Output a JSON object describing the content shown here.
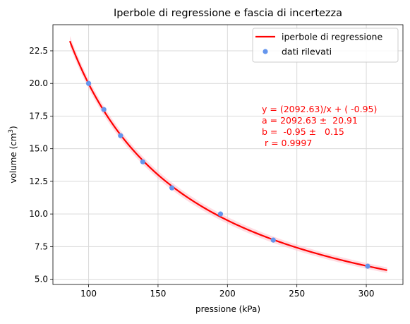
{
  "chart_data": {
    "type": "scatter",
    "title": "Iperbole di regressione e fascia di incertezza",
    "xlabel": "pressione (kPa)",
    "ylabel_main": "volume (cm",
    "ylabel_sup": "3",
    "ylabel_close": ")",
    "xlim": [
      74.3,
      326.4
    ],
    "ylim": [
      4.6,
      24.5
    ],
    "xticks": [
      100,
      150,
      200,
      250,
      300
    ],
    "yticks": [
      5.0,
      7.5,
      10.0,
      12.5,
      15.0,
      17.5,
      20.0,
      22.5
    ],
    "xtick_labels": [
      "100",
      "150",
      "200",
      "250",
      "300"
    ],
    "ytick_labels": [
      "5.0",
      "7.5",
      "10.0",
      "12.5",
      "15.0",
      "17.5",
      "20.0",
      "22.5"
    ],
    "grid": true,
    "legend_position": "top-right",
    "legend": [
      {
        "label": "iperbole di regressione",
        "kind": "line",
        "color": "#ff0000"
      },
      {
        "label": "dati rilevati",
        "kind": "marker",
        "color": "#6495ed"
      }
    ],
    "scatter": {
      "name": "dati rilevati",
      "color": "#6495ed",
      "x": [
        100,
        111,
        123,
        139,
        160,
        195,
        233,
        301
      ],
      "y": [
        20.0,
        18.0,
        16.0,
        14.0,
        12.0,
        10.0,
        8.0,
        6.0
      ]
    },
    "fit": {
      "name": "iperbole di regressione",
      "color": "#ff0000",
      "band_color": "#ffc0cb",
      "model": "y = a/x + b",
      "a": 2092.63,
      "a_err": 20.91,
      "b": -0.95,
      "b_err": 0.15,
      "x_range": [
        86.5,
        315
      ]
    },
    "annotation": {
      "color": "#ff0000",
      "lines": [
        "y = (2092.63)/x + ( -0.95)",
        "a = 2092.63 ±  20.91",
        "b =  -0.95 ±   0.15",
        " r = 0.9997"
      ]
    }
  }
}
